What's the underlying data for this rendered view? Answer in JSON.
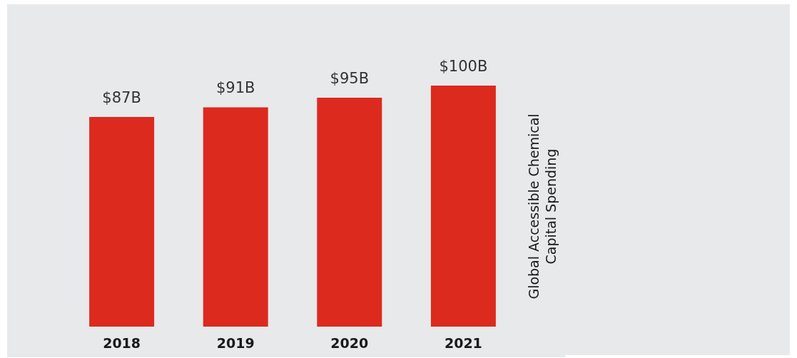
{
  "chart_data": {
    "type": "bar",
    "categories": [
      "2018",
      "2019",
      "2020",
      "2021"
    ],
    "values": [
      87,
      91,
      95,
      100
    ],
    "value_labels": [
      "$87B",
      "$91B",
      "$95B",
      "$100B"
    ],
    "color": "#dc2a1f",
    "ylabel": "Global Accessible Chemical Capital Spending",
    "grid": false
  }
}
